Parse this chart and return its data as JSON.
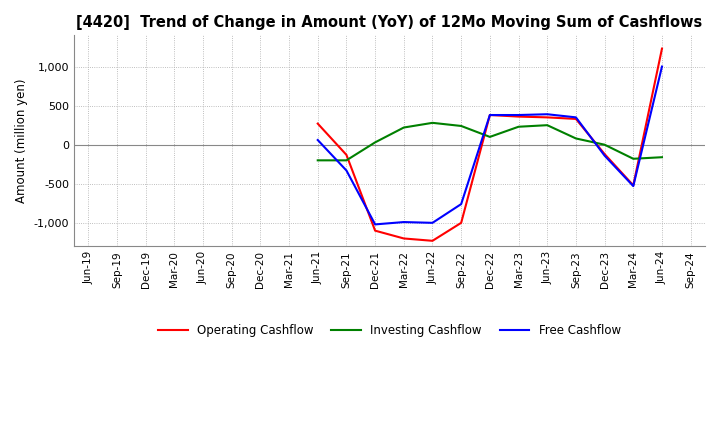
{
  "title": "[4420]  Trend of Change in Amount (YoY) of 12Mo Moving Sum of Cashflows",
  "ylabel": "Amount (million yen)",
  "x_labels": [
    "Jun-19",
    "Sep-19",
    "Dec-19",
    "Mar-20",
    "Jun-20",
    "Sep-20",
    "Dec-20",
    "Mar-21",
    "Jun-21",
    "Sep-21",
    "Dec-21",
    "Mar-22",
    "Jun-22",
    "Sep-22",
    "Dec-22",
    "Mar-23",
    "Jun-23",
    "Sep-23",
    "Dec-23",
    "Mar-24",
    "Jun-24",
    "Sep-24"
  ],
  "operating": [
    null,
    null,
    null,
    null,
    null,
    null,
    null,
    null,
    270,
    -130,
    -1100,
    -1200,
    -1230,
    -1000,
    380,
    360,
    350,
    330,
    -120,
    -520,
    1230,
    null
  ],
  "investing": [
    null,
    null,
    null,
    null,
    null,
    null,
    null,
    null,
    -200,
    -200,
    30,
    220,
    280,
    240,
    100,
    230,
    250,
    80,
    0,
    -180,
    -160,
    null
  ],
  "free": [
    null,
    null,
    null,
    null,
    null,
    null,
    null,
    null,
    60,
    -330,
    -1020,
    -990,
    -1000,
    -760,
    380,
    380,
    390,
    350,
    -140,
    -530,
    1000,
    null
  ],
  "ylim": [
    -1300,
    1400
  ],
  "yticks": [
    -1000,
    -500,
    0,
    500,
    1000
  ],
  "legend_labels": [
    "Operating Cashflow",
    "Investing Cashflow",
    "Free Cashflow"
  ],
  "line_colors": [
    "#ff0000",
    "#008000",
    "#0000ff"
  ],
  "background_color": "#ffffff",
  "grid_color": "#aaaaaa"
}
